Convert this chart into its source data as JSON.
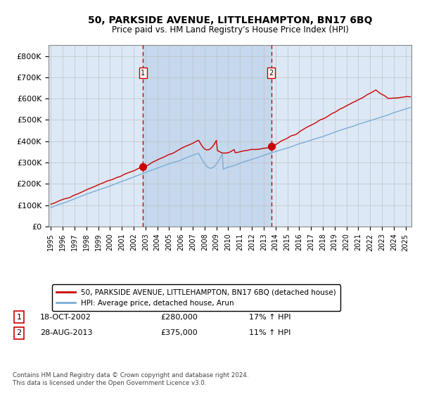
{
  "title": "50, PARKSIDE AVENUE, LITTLEHAMPTON, BN17 6BQ",
  "subtitle": "Price paid vs. HM Land Registry's House Price Index (HPI)",
  "legend_line1": "50, PARKSIDE AVENUE, LITTLEHAMPTON, BN17 6BQ (detached house)",
  "legend_line2": "HPI: Average price, detached house, Arun",
  "annotation1": {
    "label": "1",
    "date_str": "18-OCT-2002",
    "price_str": "£280,000",
    "pct_str": "17% ↑ HPI"
  },
  "annotation2": {
    "label": "2",
    "date_str": "28-AUG-2013",
    "price_str": "£375,000",
    "pct_str": "11% ↑ HPI"
  },
  "footer": "Contains HM Land Registry data © Crown copyright and database right 2024.\nThis data is licensed under the Open Government Licence v3.0.",
  "background_color": "#ffffff",
  "plot_bg_color": "#dce8f5",
  "shade_color": "#c5d8ed",
  "red_color": "#cc0000",
  "blue_color": "#7aadd4",
  "grid_color": "#bbbbbb",
  "ylim": [
    0,
    850000
  ],
  "yticks": [
    0,
    100000,
    200000,
    300000,
    400000,
    500000,
    600000,
    700000,
    800000
  ],
  "ytick_labels": [
    "£0",
    "£100K",
    "£200K",
    "£300K",
    "£400K",
    "£500K",
    "£600K",
    "£700K",
    "£800K"
  ],
  "sale1_year": 2002.79,
  "sale1_price": 280000,
  "sale2_year": 2013.65,
  "sale2_price": 375000,
  "vline1_year": 2002.79,
  "vline2_year": 2013.65,
  "shade_start": 2002.79,
  "shade_end": 2013.65,
  "xlim_start": 1994.8,
  "xlim_end": 2025.5
}
